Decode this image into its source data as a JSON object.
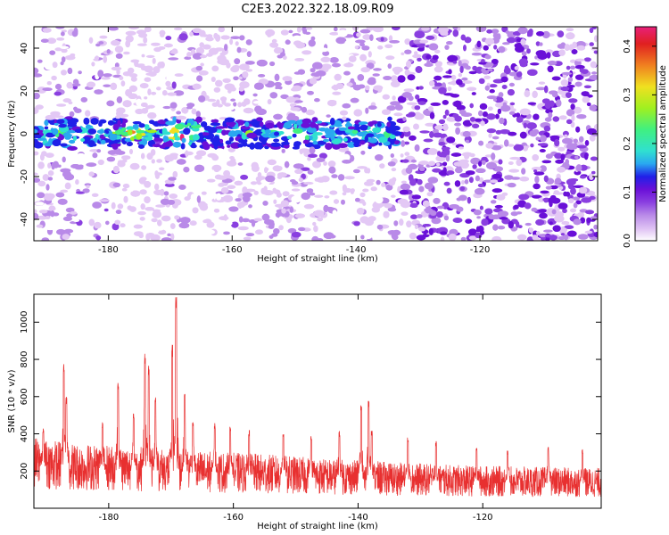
{
  "title": "C2E3.2022.322.18.09.R09",
  "colors": {
    "snr_line": "#e83030",
    "spectrogram_palette": [
      "#ffffff",
      "#e3c8f5",
      "#b98ae8",
      "#8a3fe0",
      "#6a10d8",
      "#2020e8",
      "#2aa8f0",
      "#30e0d0",
      "#40f080",
      "#a0f020",
      "#f0e020",
      "#f08020",
      "#e02020",
      "#e8207a"
    ]
  },
  "chart_data": [
    {
      "type": "heatmap",
      "name": "spectrogram",
      "xlabel": "Height of straight line (km)",
      "ylabel": "Frequency (Hz)",
      "xlim": [
        -192,
        -101
      ],
      "ylim": [
        -50,
        50
      ],
      "x_ticks": [
        -180,
        -160,
        -140,
        -120
      ],
      "y_ticks": [
        -40,
        -20,
        0,
        20,
        40
      ],
      "colorbar": {
        "label": "Normalized spectral amplitude",
        "range": [
          0.0,
          0.44
        ],
        "ticks": [
          0.0,
          0.1,
          0.2,
          0.3,
          0.4
        ]
      },
      "signal_band": {
        "frequency_hz": 0,
        "x_range": [
          -192,
          -133
        ],
        "peak_amplitude": 0.4,
        "peak_locations": [
          -175,
          -168
        ]
      },
      "noise_region_x_range": [
        -133,
        -101
      ]
    },
    {
      "type": "line",
      "name": "snr",
      "xlabel": "Height of straight line (km)",
      "ylabel": "SNR (10 * v/v)",
      "xlim": [
        -192,
        -101
      ],
      "ylim": [
        0,
        1150
      ],
      "x_ticks": [
        -180,
        -160,
        -140,
        -120
      ],
      "y_ticks": [
        200,
        400,
        600,
        800,
        1000
      ],
      "baseline": [
        {
          "x": -192,
          "y": 230
        },
        {
          "x": -185,
          "y": 210
        },
        {
          "x": -175,
          "y": 200
        },
        {
          "x": -165,
          "y": 185
        },
        {
          "x": -155,
          "y": 175
        },
        {
          "x": -145,
          "y": 160
        },
        {
          "x": -135,
          "y": 150
        },
        {
          "x": -125,
          "y": 140
        },
        {
          "x": -115,
          "y": 135
        },
        {
          "x": -101,
          "y": 130
        }
      ],
      "peaks": [
        {
          "x": -190.5,
          "y": 430
        },
        {
          "x": -187.2,
          "y": 780
        },
        {
          "x": -186.8,
          "y": 600
        },
        {
          "x": -181.0,
          "y": 470
        },
        {
          "x": -178.5,
          "y": 680
        },
        {
          "x": -176.0,
          "y": 520
        },
        {
          "x": -174.2,
          "y": 840
        },
        {
          "x": -173.6,
          "y": 770
        },
        {
          "x": -172.5,
          "y": 610
        },
        {
          "x": -169.8,
          "y": 880
        },
        {
          "x": -169.2,
          "y": 1140
        },
        {
          "x": -167.8,
          "y": 650
        },
        {
          "x": -166.5,
          "y": 480
        },
        {
          "x": -163.0,
          "y": 460
        },
        {
          "x": -160.5,
          "y": 440
        },
        {
          "x": -157.5,
          "y": 420
        },
        {
          "x": -152.0,
          "y": 410
        },
        {
          "x": -147.5,
          "y": 400
        },
        {
          "x": -143.0,
          "y": 420
        },
        {
          "x": -139.5,
          "y": 560
        },
        {
          "x": -138.3,
          "y": 580
        },
        {
          "x": -137.8,
          "y": 420
        },
        {
          "x": -132.0,
          "y": 380
        },
        {
          "x": -127.5,
          "y": 360
        },
        {
          "x": -121.0,
          "y": 330
        },
        {
          "x": -116.0,
          "y": 310
        },
        {
          "x": -109.5,
          "y": 330
        },
        {
          "x": -104.0,
          "y": 320
        }
      ]
    }
  ]
}
